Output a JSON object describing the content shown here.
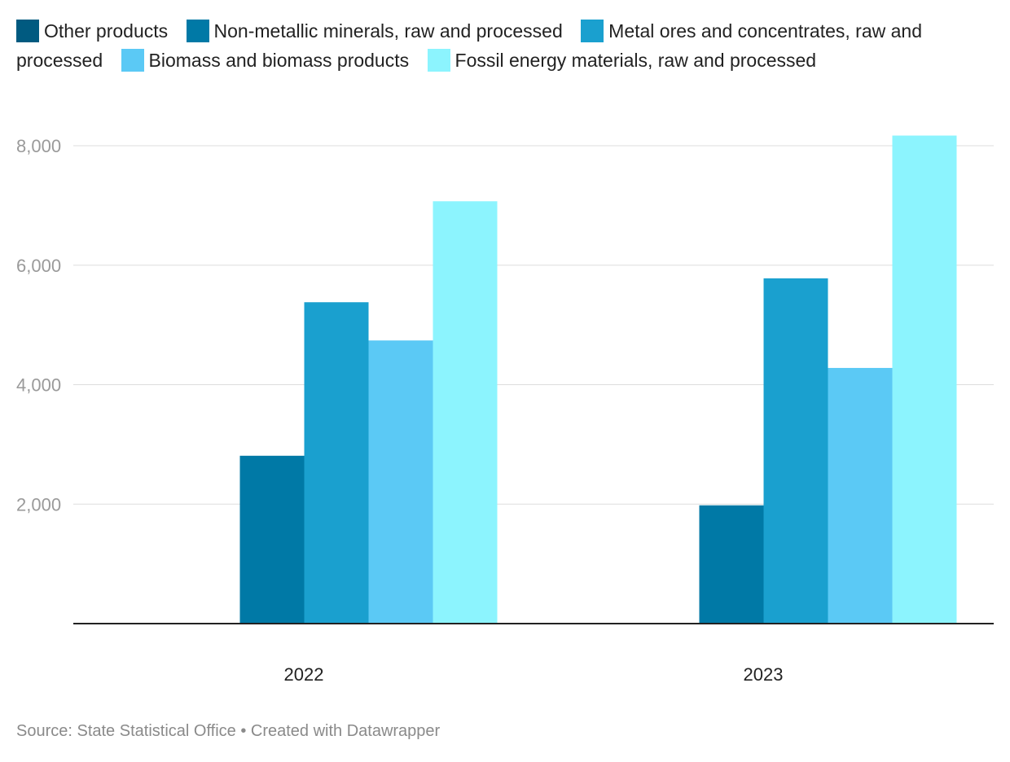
{
  "chart_data": {
    "type": "bar",
    "categories": [
      "2022",
      "2023"
    ],
    "series": [
      {
        "name": "Other products",
        "color": "#005a80",
        "values": [
          0,
          0
        ]
      },
      {
        "name": "Non-metallic minerals, raw and processed",
        "color": "#0079a6",
        "values": [
          2810,
          1980
        ]
      },
      {
        "name": "Metal ores and concentrates, raw and processed",
        "color": "#1aa0cf",
        "values": [
          5380,
          5780
        ]
      },
      {
        "name": "Biomass and biomass products",
        "color": "#5bc9f5",
        "values": [
          4740,
          4280
        ]
      },
      {
        "name": "Fossil energy materials, raw and processed",
        "color": "#8cf4fe",
        "values": [
          7070,
          8170
        ]
      }
    ],
    "yticks": [
      2000,
      4000,
      6000,
      8000
    ],
    "ytick_labels": [
      "2,000",
      "4,000",
      "6,000",
      "8,000"
    ],
    "ylim": [
      0,
      8000
    ],
    "grid": true,
    "legend_position": "top"
  },
  "footer": {
    "source_text": "Source: State Statistical Office • Created with Datawrapper"
  }
}
